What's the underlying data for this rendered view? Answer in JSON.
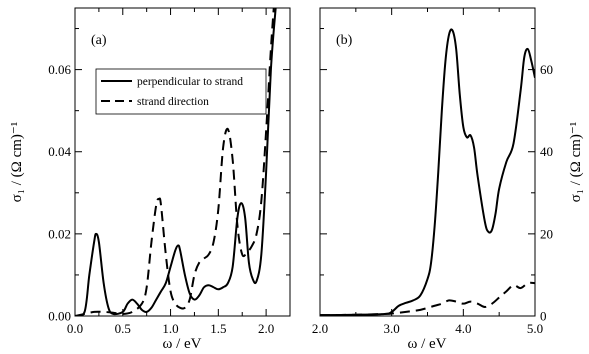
{
  "chart_data": [
    {
      "type": "line",
      "panel_label": "(a)",
      "xlabel": "ω / eV",
      "ylabel": "σ₁ / (Ω cm)⁻¹",
      "xlim": [
        0.0,
        2.25
      ],
      "ylim": [
        0.0,
        0.075
      ],
      "x_ticks": [
        "0.0",
        "0.5",
        "1.0",
        "1.5",
        "2.0"
      ],
      "y_ticks": [
        "0.00",
        "0.02",
        "0.04",
        "0.06"
      ],
      "x_tick_values": [
        0.0,
        0.5,
        1.0,
        1.5,
        2.0
      ],
      "y_tick_values": [
        0.0,
        0.02,
        0.04,
        0.06
      ],
      "legend": {
        "position": "upper-left",
        "entries": [
          "perpendicular to strand",
          "strand direction"
        ]
      },
      "series": [
        {
          "name": "perpendicular to strand",
          "style": "solid",
          "x": [
            0.0,
            0.1,
            0.15,
            0.2,
            0.22,
            0.25,
            0.3,
            0.35,
            0.4,
            0.5,
            0.55,
            0.6,
            0.65,
            0.7,
            0.75,
            0.8,
            0.85,
            0.9,
            0.95,
            1.0,
            1.05,
            1.08,
            1.1,
            1.15,
            1.2,
            1.25,
            1.3,
            1.35,
            1.4,
            1.45,
            1.5,
            1.55,
            1.6,
            1.65,
            1.7,
            1.74,
            1.78,
            1.82,
            1.86,
            1.9,
            1.95,
            2.0,
            2.05,
            2.1
          ],
          "y": [
            0.0,
            0.001,
            0.01,
            0.018,
            0.02,
            0.018,
            0.008,
            0.002,
            0.0005,
            0.001,
            0.003,
            0.004,
            0.003,
            0.0015,
            0.001,
            0.002,
            0.004,
            0.006,
            0.008,
            0.012,
            0.016,
            0.0172,
            0.016,
            0.01,
            0.0055,
            0.004,
            0.005,
            0.007,
            0.0075,
            0.007,
            0.0065,
            0.007,
            0.008,
            0.012,
            0.024,
            0.0275,
            0.024,
            0.013,
            0.009,
            0.0085,
            0.015,
            0.035,
            0.06,
            0.075
          ]
        },
        {
          "name": "strand direction",
          "style": "dashed",
          "x": [
            0.0,
            0.1,
            0.2,
            0.3,
            0.4,
            0.5,
            0.6,
            0.7,
            0.75,
            0.8,
            0.85,
            0.88,
            0.9,
            0.95,
            1.0,
            1.05,
            1.1,
            1.15,
            1.2,
            1.25,
            1.3,
            1.35,
            1.4,
            1.45,
            1.5,
            1.55,
            1.6,
            1.65,
            1.7,
            1.75,
            1.8,
            1.85,
            1.9,
            1.95,
            2.0,
            2.05,
            2.08
          ],
          "y": [
            0.0,
            0.0005,
            0.001,
            0.001,
            0.0008,
            0.0005,
            0.001,
            0.003,
            0.007,
            0.018,
            0.027,
            0.0285,
            0.027,
            0.015,
            0.006,
            0.003,
            0.002,
            0.002,
            0.004,
            0.01,
            0.013,
            0.014,
            0.015,
            0.018,
            0.026,
            0.041,
            0.0455,
            0.038,
            0.022,
            0.015,
            0.0155,
            0.017,
            0.02,
            0.028,
            0.045,
            0.065,
            0.075
          ]
        }
      ]
    },
    {
      "type": "line",
      "panel_label": "(b)",
      "xlabel": "ω / eV",
      "ylabel": "σ₁ / (Ω cm)⁻¹",
      "ylabel_position": "right",
      "xlim": [
        2.0,
        5.0
      ],
      "ylim": [
        0,
        75
      ],
      "x_ticks": [
        "2.0",
        "3.0",
        "4.0",
        "5.0"
      ],
      "y_ticks": [
        "0",
        "20",
        "40",
        "60"
      ],
      "x_tick_values": [
        2.0,
        3.0,
        4.0,
        5.0
      ],
      "y_tick_values": [
        0,
        20,
        40,
        60
      ],
      "series": [
        {
          "name": "perpendicular to strand",
          "style": "solid",
          "x": [
            2.0,
            2.5,
            2.9,
            3.0,
            3.1,
            3.2,
            3.3,
            3.4,
            3.5,
            3.55,
            3.6,
            3.65,
            3.7,
            3.75,
            3.8,
            3.85,
            3.9,
            3.95,
            4.0,
            4.05,
            4.1,
            4.15,
            4.2,
            4.3,
            4.35,
            4.4,
            4.45,
            4.5,
            4.6,
            4.7,
            4.8,
            4.85,
            4.9,
            4.95,
            5.0
          ],
          "y": [
            0.2,
            0.3,
            0.5,
            1.0,
            2.5,
            3.2,
            3.8,
            5.0,
            9.0,
            13.0,
            22.0,
            35.0,
            50.0,
            62.0,
            68.5,
            69.5,
            65.0,
            54.0,
            46.0,
            43.5,
            44.0,
            41.0,
            34.0,
            23.0,
            20.5,
            21.0,
            25.0,
            31.0,
            37.5,
            42.0,
            55.0,
            63.0,
            65.0,
            62.0,
            58.0
          ]
        },
        {
          "name": "strand direction",
          "style": "dashed",
          "x": [
            2.0,
            2.5,
            2.9,
            3.0,
            3.2,
            3.4,
            3.6,
            3.7,
            3.8,
            3.9,
            4.0,
            4.1,
            4.2,
            4.3,
            4.4,
            4.5,
            4.6,
            4.7,
            4.8,
            4.9,
            5.0
          ],
          "y": [
            0.2,
            0.3,
            0.5,
            0.6,
            1.0,
            1.5,
            2.5,
            3.0,
            3.8,
            3.5,
            3.0,
            3.5,
            3.0,
            2.2,
            3.0,
            4.5,
            6.0,
            7.5,
            6.8,
            8.0,
            8.0
          ]
        }
      ]
    }
  ]
}
